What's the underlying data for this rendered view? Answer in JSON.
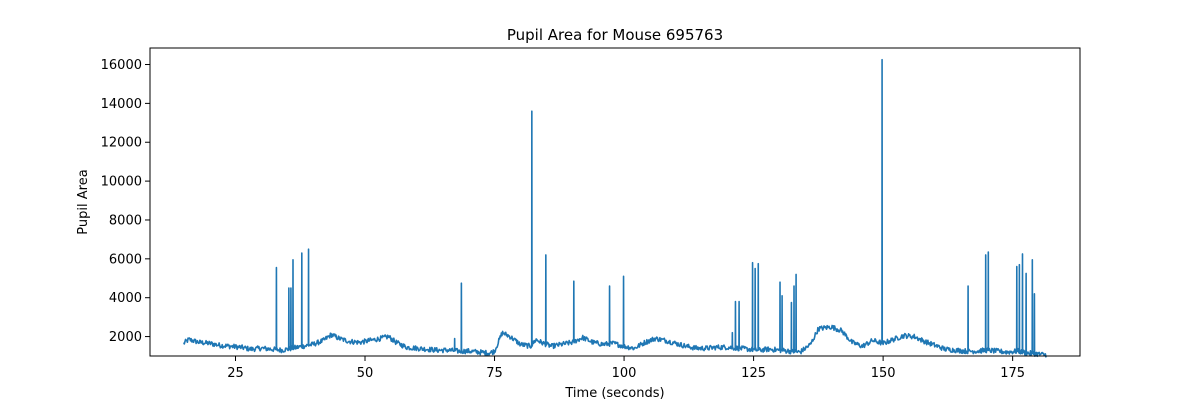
{
  "chart_data": {
    "type": "line",
    "title": "Pupil Area for Mouse 695763",
    "xlabel": "Time (seconds)",
    "ylabel": "Pupil Area",
    "xlim": [
      8.5,
      188
    ],
    "ylim": [
      1000,
      16850
    ],
    "xticks": [
      25,
      50,
      75,
      100,
      125,
      150,
      175
    ],
    "yticks": [
      2000,
      4000,
      6000,
      8000,
      10000,
      12000,
      14000,
      16000
    ],
    "grid": false,
    "legend": "none",
    "line_color": "#1f77b4",
    "series": [
      {
        "baseline": [
          [
            15,
            1650
          ],
          [
            16,
            1850
          ],
          [
            18,
            1700
          ],
          [
            20,
            1650
          ],
          [
            22,
            1550
          ],
          [
            24,
            1500
          ],
          [
            26,
            1450
          ],
          [
            28,
            1350
          ],
          [
            30,
            1400
          ],
          [
            32,
            1350
          ],
          [
            34,
            1300
          ],
          [
            36,
            1400
          ],
          [
            38,
            1500
          ],
          [
            40,
            1600
          ],
          [
            42,
            1800
          ],
          [
            43.5,
            2100
          ],
          [
            45,
            1900
          ],
          [
            47,
            1750
          ],
          [
            49,
            1700
          ],
          [
            51,
            1800
          ],
          [
            53,
            1900
          ],
          [
            54.5,
            2000
          ],
          [
            56,
            1700
          ],
          [
            58,
            1450
          ],
          [
            60,
            1400
          ],
          [
            62,
            1350
          ],
          [
            64,
            1300
          ],
          [
            66,
            1300
          ],
          [
            68,
            1250
          ],
          [
            70,
            1250
          ],
          [
            72,
            1200
          ],
          [
            74,
            1150
          ],
          [
            75,
            1250
          ],
          [
            76.5,
            2200
          ],
          [
            78,
            2000
          ],
          [
            80,
            1600
          ],
          [
            82,
            1500
          ],
          [
            83,
            1850
          ],
          [
            84,
            1700
          ],
          [
            86,
            1500
          ],
          [
            88,
            1600
          ],
          [
            90,
            1700
          ],
          [
            92,
            1950
          ],
          [
            94,
            1700
          ],
          [
            96,
            1600
          ],
          [
            98,
            1650
          ],
          [
            100,
            1500
          ],
          [
            102,
            1400
          ],
          [
            104,
            1700
          ],
          [
            106,
            1900
          ],
          [
            108,
            1800
          ],
          [
            110,
            1650
          ],
          [
            112,
            1500
          ],
          [
            114,
            1400
          ],
          [
            116,
            1400
          ],
          [
            118,
            1450
          ],
          [
            120,
            1450
          ],
          [
            122,
            1400
          ],
          [
            124,
            1350
          ],
          [
            126,
            1300
          ],
          [
            128,
            1350
          ],
          [
            130,
            1300
          ],
          [
            132,
            1250
          ],
          [
            134,
            1200
          ],
          [
            136,
            1600
          ],
          [
            137.5,
            2400
          ],
          [
            140,
            2500
          ],
          [
            142,
            2300
          ],
          [
            144,
            1700
          ],
          [
            146,
            1500
          ],
          [
            148,
            1800
          ],
          [
            150,
            1650
          ],
          [
            152,
            1850
          ],
          [
            154,
            2050
          ],
          [
            156,
            2000
          ],
          [
            158,
            1750
          ],
          [
            160,
            1550
          ],
          [
            162,
            1350
          ],
          [
            164,
            1300
          ],
          [
            166,
            1250
          ],
          [
            168,
            1250
          ],
          [
            170,
            1300
          ],
          [
            172,
            1250
          ],
          [
            174,
            1200
          ],
          [
            176,
            1250
          ],
          [
            178,
            1150
          ],
          [
            180,
            1100
          ],
          [
            181.5,
            1050
          ]
        ],
        "spikes": [
          [
            32.9,
            5550
          ],
          [
            35.3,
            4500
          ],
          [
            35.7,
            4500
          ],
          [
            36.1,
            5950
          ],
          [
            37.8,
            6300
          ],
          [
            39.1,
            6500
          ],
          [
            67.3,
            1900
          ],
          [
            68.6,
            4750
          ],
          [
            82.2,
            13600
          ],
          [
            84.9,
            6200
          ],
          [
            90.3,
            4850
          ],
          [
            97.2,
            4600
          ],
          [
            99.9,
            5100
          ],
          [
            120.9,
            2200
          ],
          [
            121.5,
            3800
          ],
          [
            122.2,
            3800
          ],
          [
            124.8,
            5800
          ],
          [
            125.3,
            5500
          ],
          [
            125.9,
            5750
          ],
          [
            130.1,
            4800
          ],
          [
            130.5,
            4100
          ],
          [
            132.3,
            3750
          ],
          [
            132.8,
            4600
          ],
          [
            133.2,
            5200
          ],
          [
            149.8,
            16250
          ],
          [
            166.4,
            4600
          ],
          [
            169.8,
            6200
          ],
          [
            170.3,
            6350
          ],
          [
            175.8,
            5600
          ],
          [
            176.3,
            5700
          ],
          [
            176.9,
            6250
          ],
          [
            177.6,
            5250
          ],
          [
            178.8,
            5950
          ],
          [
            179.2,
            4200
          ]
        ]
      }
    ]
  }
}
